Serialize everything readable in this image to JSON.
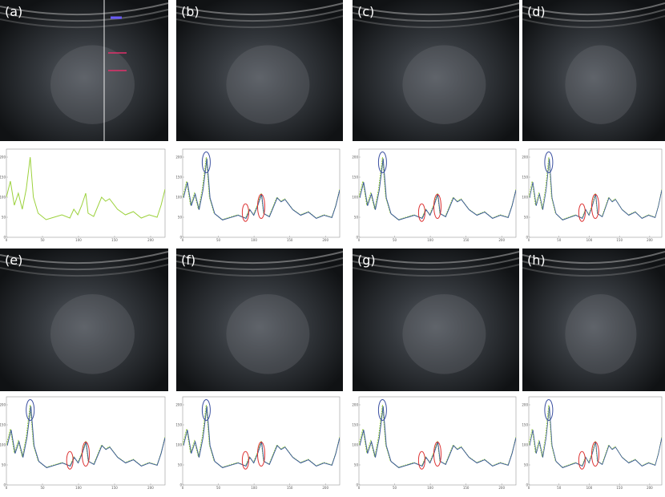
{
  "panels": [
    {
      "label": "(a)"
    },
    {
      "label": "(b)"
    },
    {
      "label": "(c)"
    },
    {
      "label": "(d)"
    },
    {
      "label": "(e)"
    },
    {
      "label": "(f)"
    },
    {
      "label": "(g)"
    },
    {
      "label": "(h)"
    }
  ],
  "profile_axes": {
    "xticks": [
      0,
      50,
      100,
      150,
      200
    ],
    "yticks": [
      0,
      50,
      100,
      150,
      200
    ]
  }
}
